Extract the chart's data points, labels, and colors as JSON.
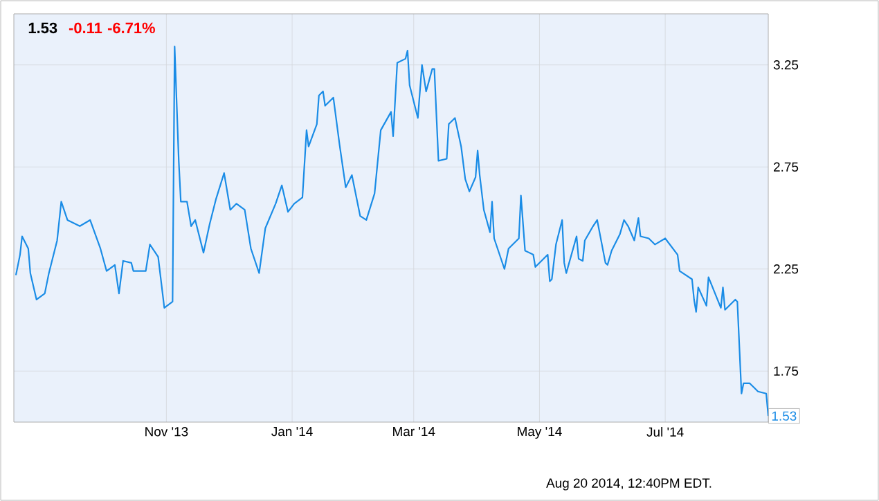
{
  "chart_data": {
    "type": "line",
    "title": "1.53",
    "subtitle": "-0.11  -6.71%",
    "annotations": [
      {
        "text": "1.53",
        "x": "2014-08-20",
        "y": 1.53
      },
      "Aug 20 2014, 12:40PM EDT."
    ],
    "x": [
      "2013-08-20",
      "2013-08-22",
      "2013-08-23",
      "2013-08-26",
      "2013-08-27",
      "2013-08-30",
      "2013-09-03",
      "2013-09-05",
      "2013-09-09",
      "2013-09-11",
      "2013-09-14",
      "2013-09-20",
      "2013-09-25",
      "2013-09-30",
      "2013-10-03",
      "2013-10-07",
      "2013-10-09",
      "2013-10-11",
      "2013-10-15",
      "2013-10-16",
      "2013-10-22",
      "2013-10-24",
      "2013-10-28",
      "2013-10-31",
      "2013-11-04",
      "2013-11-05",
      "2013-11-07",
      "2013-11-08",
      "2013-11-11",
      "2013-11-13",
      "2013-11-15",
      "2013-11-19",
      "2013-11-22",
      "2013-11-25",
      "2013-11-29",
      "2013-12-02",
      "2013-12-05",
      "2013-12-09",
      "2013-12-12",
      "2013-12-16",
      "2013-12-19",
      "2013-12-24",
      "2013-12-27",
      "2013-12-30",
      "2014-01-02",
      "2014-01-06",
      "2014-01-08",
      "2014-01-09",
      "2014-01-13",
      "2014-01-14",
      "2014-01-16",
      "2014-01-17",
      "2014-01-21",
      "2014-01-24",
      "2014-01-27",
      "2014-01-30",
      "2014-02-03",
      "2014-02-06",
      "2014-02-10",
      "2014-02-13",
      "2014-02-18",
      "2014-02-19",
      "2014-02-21",
      "2014-02-25",
      "2014-02-26",
      "2014-02-27",
      "2014-03-03",
      "2014-03-05",
      "2014-03-07",
      "2014-03-10",
      "2014-03-11",
      "2014-03-13",
      "2014-03-17",
      "2014-03-18",
      "2014-03-21",
      "2014-03-24",
      "2014-03-26",
      "2014-03-28",
      "2014-03-31",
      "2014-04-01",
      "2014-04-02",
      "2014-04-04",
      "2014-04-07",
      "2014-04-08",
      "2014-04-09",
      "2014-04-14",
      "2014-04-16",
      "2014-04-21",
      "2014-04-22",
      "2014-04-24",
      "2014-04-28",
      "2014-04-29",
      "2014-05-05",
      "2014-05-06",
      "2014-05-07",
      "2014-05-09",
      "2014-05-12",
      "2014-05-13",
      "2014-05-14",
      "2014-05-19",
      "2014-05-20",
      "2014-05-22",
      "2014-05-23",
      "2014-05-27",
      "2014-05-29",
      "2014-06-02",
      "2014-06-03",
      "2014-06-05",
      "2014-06-09",
      "2014-06-11",
      "2014-06-13",
      "2014-06-16",
      "2014-06-18",
      "2014-06-19",
      "2014-06-23",
      "2014-06-26",
      "2014-07-01",
      "2014-07-07",
      "2014-07-08",
      "2014-07-14",
      "2014-07-15",
      "2014-07-16",
      "2014-07-17",
      "2014-07-21",
      "2014-07-22",
      "2014-07-28",
      "2014-07-29",
      "2014-07-30",
      "2014-08-04",
      "2014-08-05",
      "2014-08-07",
      "2014-08-08",
      "2014-08-11",
      "2014-08-13",
      "2014-08-15",
      "2014-08-19",
      "2014-08-20"
    ],
    "series": [
      {
        "color": "#1a8ce6",
        "values": [
          2.22,
          2.32,
          2.41,
          2.35,
          2.23,
          2.1,
          2.13,
          2.23,
          2.39,
          2.58,
          2.49,
          2.46,
          2.49,
          2.35,
          2.24,
          2.27,
          2.13,
          2.29,
          2.28,
          2.24,
          2.24,
          2.37,
          2.31,
          2.06,
          2.09,
          3.34,
          2.78,
          2.58,
          2.58,
          2.46,
          2.49,
          2.33,
          2.47,
          2.59,
          2.72,
          2.54,
          2.57,
          2.54,
          2.35,
          2.23,
          2.45,
          2.57,
          2.66,
          2.53,
          2.57,
          2.6,
          2.93,
          2.85,
          2.96,
          3.1,
          3.12,
          3.05,
          3.09,
          2.86,
          2.65,
          2.71,
          2.51,
          2.49,
          2.62,
          2.93,
          3.02,
          2.9,
          3.26,
          3.28,
          3.32,
          3.15,
          2.99,
          3.25,
          3.12,
          3.23,
          3.23,
          2.78,
          2.79,
          2.96,
          2.99,
          2.85,
          2.69,
          2.63,
          2.7,
          2.83,
          2.71,
          2.54,
          2.43,
          2.58,
          2.4,
          2.25,
          2.35,
          2.4,
          2.61,
          2.34,
          2.32,
          2.26,
          2.32,
          2.19,
          2.2,
          2.37,
          2.49,
          2.28,
          2.23,
          2.41,
          2.3,
          2.29,
          2.39,
          2.46,
          2.49,
          2.28,
          2.27,
          2.34,
          2.42,
          2.49,
          2.46,
          2.39,
          2.5,
          2.41,
          2.4,
          2.37,
          2.4,
          2.32,
          2.24,
          2.2,
          2.1,
          2.04,
          2.16,
          2.07,
          2.21,
          2.06,
          2.16,
          2.05,
          2.1,
          2.09,
          1.64,
          1.69,
          1.69,
          1.67,
          1.65,
          1.64,
          1.53
        ]
      }
    ],
    "xlim": [
      "2013-08-19",
      "2014-08-20"
    ],
    "xticks": [
      {
        "value": "2013-11-01",
        "label": "Nov '13"
      },
      {
        "value": "2014-01-01",
        "label": "Jan '14"
      },
      {
        "value": "2014-03-01",
        "label": "Mar '14"
      },
      {
        "value": "2014-05-01",
        "label": "May '14"
      },
      {
        "value": "2014-07-01",
        "label": "Jul '14"
      }
    ],
    "ylim": [
      1.5,
      3.5
    ],
    "yticks": [
      1.75,
      2.25,
      2.75,
      3.25
    ],
    "grid": true
  }
}
